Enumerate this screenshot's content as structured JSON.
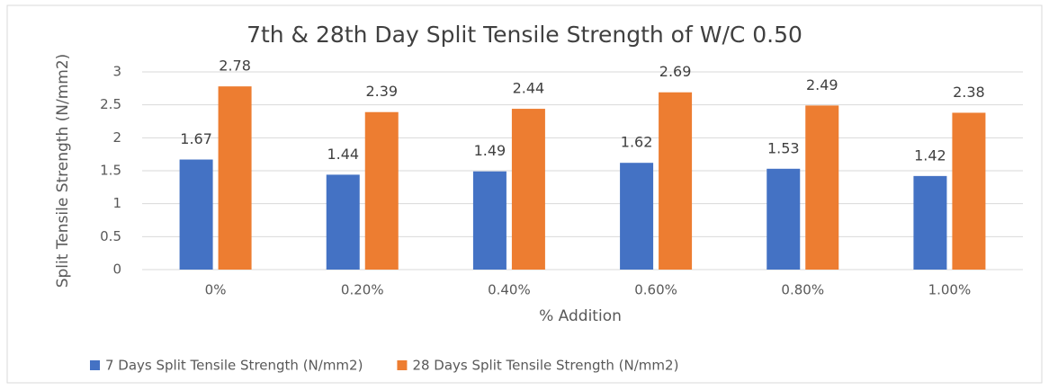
{
  "chart_data": {
    "type": "bar",
    "title": "7th & 28th Day Split Tensile Strength of W/C 0.50",
    "x_label": "% Addition",
    "y_label": "Split Tensile Strength (N/mm2)",
    "categories": [
      "0%",
      "0.20%",
      "0.40%",
      "0.60%",
      "0.80%",
      "1.00%"
    ],
    "series": [
      {
        "name": "7 Days Split Tensile Strength (N/mm2)",
        "color": "#4472c4",
        "values": [
          1.67,
          1.44,
          1.49,
          1.62,
          1.53,
          1.42
        ]
      },
      {
        "name": "28 Days Split Tensile Strength (N/mm2)",
        "color": "#ed7d31",
        "values": [
          2.78,
          2.39,
          2.44,
          2.69,
          2.49,
          2.38
        ]
      }
    ],
    "ylim": [
      0,
      3
    ],
    "yticks": [
      0,
      0.5,
      1,
      1.5,
      2,
      2.5,
      3
    ],
    "grid": true,
    "legend": "bottom"
  }
}
